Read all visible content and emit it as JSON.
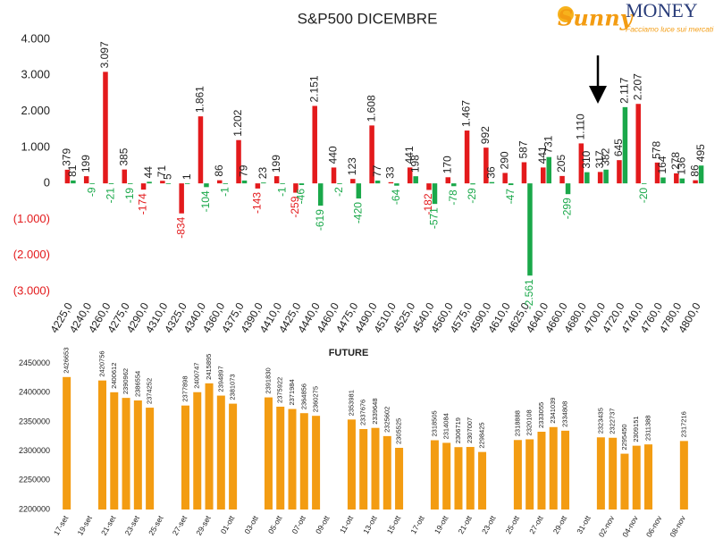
{
  "logo": {
    "brand": "Sunny",
    "name": "MONEY",
    "tagline": "Facciamo luce sui mercati"
  },
  "chart_data": [
    {
      "type": "bar",
      "title": "S&P500 DICEMBRE",
      "categories": [
        "4225,0",
        "4240,0",
        "4260,0",
        "4275,0",
        "4290,0",
        "4310,0",
        "4325,0",
        "4340,0",
        "4360,0",
        "4375,0",
        "4390,0",
        "4410,0",
        "4425,0",
        "4440,0",
        "4460,0",
        "4475,0",
        "4490,0",
        "4510,0",
        "4525,0",
        "4540,0",
        "4560,0",
        "4575,0",
        "4590,0",
        "4610,0",
        "4625,0",
        "4640,0",
        "4660,0",
        "4680,0",
        "4700,0",
        "4720,0",
        "4740,0",
        "4760,0",
        "4780,0",
        "4800,0"
      ],
      "series": [
        {
          "color": "#e31a1c",
          "values": [
            379,
            199,
            3097,
            385,
            -174,
            71,
            -834,
            1861,
            86,
            1202,
            -143,
            199,
            -259,
            2151,
            440,
            123,
            1608,
            33,
            441,
            -182,
            170,
            1467,
            992,
            290,
            587,
            441,
            205,
            1110,
            317,
            645,
            2207,
            578,
            278,
            86
          ],
          "value_labels": [
            "379",
            "199",
            "3.097",
            "385",
            "-174",
            "71",
            "-834",
            "1.861",
            "86",
            "1.202",
            "-143",
            "199",
            "-259",
            "2.151",
            "440",
            "123",
            "1.608",
            "33",
            "441",
            "-182",
            "170",
            "1.467",
            "992",
            "290",
            "587",
            "441",
            "205",
            "1.110",
            "317",
            "645",
            "2.207",
            "578",
            "278",
            "86"
          ]
        },
        {
          "color": "#1aa84a",
          "values": [
            81,
            -9,
            -21,
            -19,
            44,
            5,
            1,
            -104,
            -1,
            79,
            23,
            -1,
            -46,
            -619,
            -2,
            -420,
            77,
            -64,
            198,
            -571,
            -78,
            -29,
            36,
            -47,
            -2561,
            731,
            -299,
            310,
            382,
            2117,
            -20,
            164,
            136,
            495
          ],
          "value_labels": [
            "81",
            "-9",
            "-21",
            "-19",
            "44",
            "5",
            "1",
            "-104",
            "-1",
            "79",
            "23",
            "-1",
            "-46",
            "-619",
            "-2",
            "-420",
            "77",
            "-64",
            "198",
            "-571",
            "-78",
            "-29",
            "36",
            "-47",
            "-2.561",
            "731",
            "-299",
            "310",
            "382",
            "2.117",
            "-20",
            "164",
            "136",
            "495"
          ]
        }
      ],
      "ylim": [
        -3000,
        4000
      ],
      "yticks": [
        {
          "value": 4000,
          "label": "4.000"
        },
        {
          "value": 3000,
          "label": "3.000"
        },
        {
          "value": 2000,
          "label": "2.000"
        },
        {
          "value": 1000,
          "label": "1.000"
        },
        0,
        {
          "value": -1000,
          "label": "(1.000)"
        },
        {
          "value": -2000,
          "label": "(2.000)"
        },
        {
          "value": -3000,
          "label": "(3.000)"
        }
      ]
    },
    {
      "type": "bar",
      "title": "FUTURE",
      "color": "#f39c12",
      "categories": [
        "17-set",
        null,
        "19-set",
        null,
        "21-set",
        null,
        "23-set",
        null,
        "25-set",
        null,
        "27-set",
        null,
        "29-set",
        null,
        "01-ott",
        null,
        "03-ott",
        null,
        "05-ott",
        null,
        "07-ott",
        null,
        "09-ott",
        null,
        "11-ott",
        null,
        "13-ott",
        null,
        "15-ott",
        null,
        "17-ott",
        null,
        "19-ott",
        null,
        "21-ott",
        null,
        "23-ott",
        null,
        "25-ott",
        null,
        "27-ott",
        null,
        "29-ott",
        null,
        "31-ott",
        null,
        "02-nov",
        null,
        "04-nov",
        null,
        "06-nov",
        null,
        "08-nov"
      ],
      "values": [
        2426653,
        null,
        null,
        2420756,
        2400612,
        2390962,
        2386554,
        2374252,
        null,
        null,
        2377898,
        2400747,
        2415895,
        2394897,
        2381073,
        null,
        null,
        2391830,
        2375922,
        2371984,
        2364856,
        2360275,
        null,
        null,
        2353981,
        2337676,
        2339648,
        2325602,
        2305525,
        null,
        null,
        2318505,
        2314084,
        2306719,
        2307007,
        2298425,
        null,
        null,
        2318888,
        2320108,
        2333055,
        2341039,
        2334808,
        null,
        null,
        2323435,
        2322737,
        2295450,
        2309151,
        2311388,
        null,
        null,
        2317216
      ],
      "ylim": [
        2200000,
        2460000
      ],
      "yticks": [
        2200000,
        2250000,
        2300000,
        2350000,
        2400000,
        2450000
      ]
    }
  ]
}
